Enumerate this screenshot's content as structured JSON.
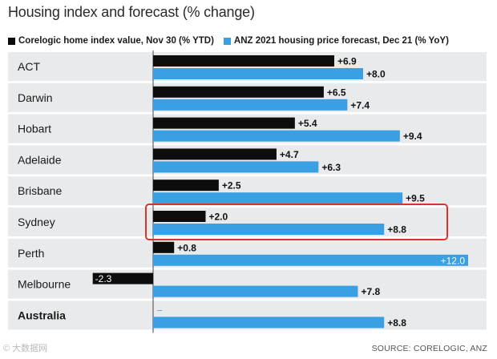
{
  "chart_data": {
    "type": "bar",
    "orientation": "horizontal",
    "title": "Housing index and forecast (% change)",
    "categories": [
      "ACT",
      "Darwin",
      "Hobart",
      "Adelaide",
      "Brisbane",
      "Sydney",
      "Perth",
      "Melbourne",
      "Australia"
    ],
    "series": [
      {
        "name": "Corelogic home index value, Nov 30 (% YTD)",
        "color": "#0d0d0d",
        "values": [
          6.9,
          6.5,
          5.4,
          4.7,
          2.5,
          2.0,
          0.8,
          -2.3,
          null
        ],
        "labels": [
          "+6.9",
          "+6.5",
          "+5.4",
          "+4.7",
          "+2.5",
          "+2.0",
          "+0.8",
          "-2.3",
          "–"
        ]
      },
      {
        "name": "ANZ 2021 housing price forecast, Dec 21 (% YoY)",
        "color": "#3a9fe3",
        "values": [
          8.0,
          7.4,
          9.4,
          6.3,
          9.5,
          8.8,
          12.0,
          7.8,
          8.8
        ],
        "labels": [
          "+8.0",
          "+7.4",
          "+9.4",
          "+6.3",
          "+9.5",
          "+8.8",
          "+12.0",
          "+7.8",
          "+8.8"
        ]
      }
    ],
    "xlim": [
      -3,
      12.3
    ],
    "highlight_category": "Sydney",
    "highlight_color": "#d9342b",
    "bold_category": "Australia",
    "row_background": "#e8eaec",
    "source": "SOURCE: CORELOGIC, ANZ"
  },
  "watermark": "© 大数据网"
}
